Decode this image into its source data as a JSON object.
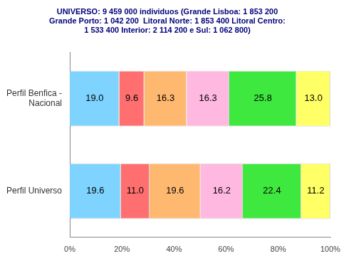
{
  "chart_data": {
    "type": "bar",
    "orientation": "horizontal",
    "stacked": true,
    "title": [
      "UNIVERSO: 9 459 000 individuos (Grande Lisboa: 1 853 200",
      "Grande Porto: 1 042 200  Litoral Norte: 1 853 400 Litoral Centro:",
      "1 533 400 Interior: 2 114 200 e Sul: 1 062 800)"
    ],
    "categories": [
      "Perfil Benfica - Nacional",
      "Perfil Universo"
    ],
    "series": [
      {
        "color": "#7fd3ff",
        "values": [
          19.0,
          19.6
        ],
        "value_labels": [
          "19.0",
          "19.6"
        ]
      },
      {
        "color": "#ff6f6f",
        "values": [
          9.6,
          11.0
        ],
        "value_labels": [
          "9.6",
          "11.0"
        ]
      },
      {
        "color": "#ffb870",
        "values": [
          16.3,
          19.6
        ],
        "value_labels": [
          "16.3",
          "19.6"
        ]
      },
      {
        "color": "#ffb8e0",
        "values": [
          16.3,
          16.2
        ],
        "value_labels": [
          "16.3",
          "16.2"
        ]
      },
      {
        "color": "#3ee83e",
        "values": [
          25.8,
          22.4
        ],
        "value_labels": [
          "25.8",
          "22.4"
        ]
      },
      {
        "color": "#ffff66",
        "values": [
          13.0,
          11.2
        ],
        "value_labels": [
          "13.0",
          "11.2"
        ]
      }
    ],
    "xlim": [
      0,
      100
    ],
    "xticks": [
      {
        "value": 0,
        "label": "0%"
      },
      {
        "value": 20,
        "label": "20%"
      },
      {
        "value": 40,
        "label": "40%"
      },
      {
        "value": 60,
        "label": "60%"
      },
      {
        "value": 80,
        "label": "80%"
      },
      {
        "value": 100,
        "label": "100%"
      }
    ],
    "grid": false,
    "data_labels": true
  }
}
